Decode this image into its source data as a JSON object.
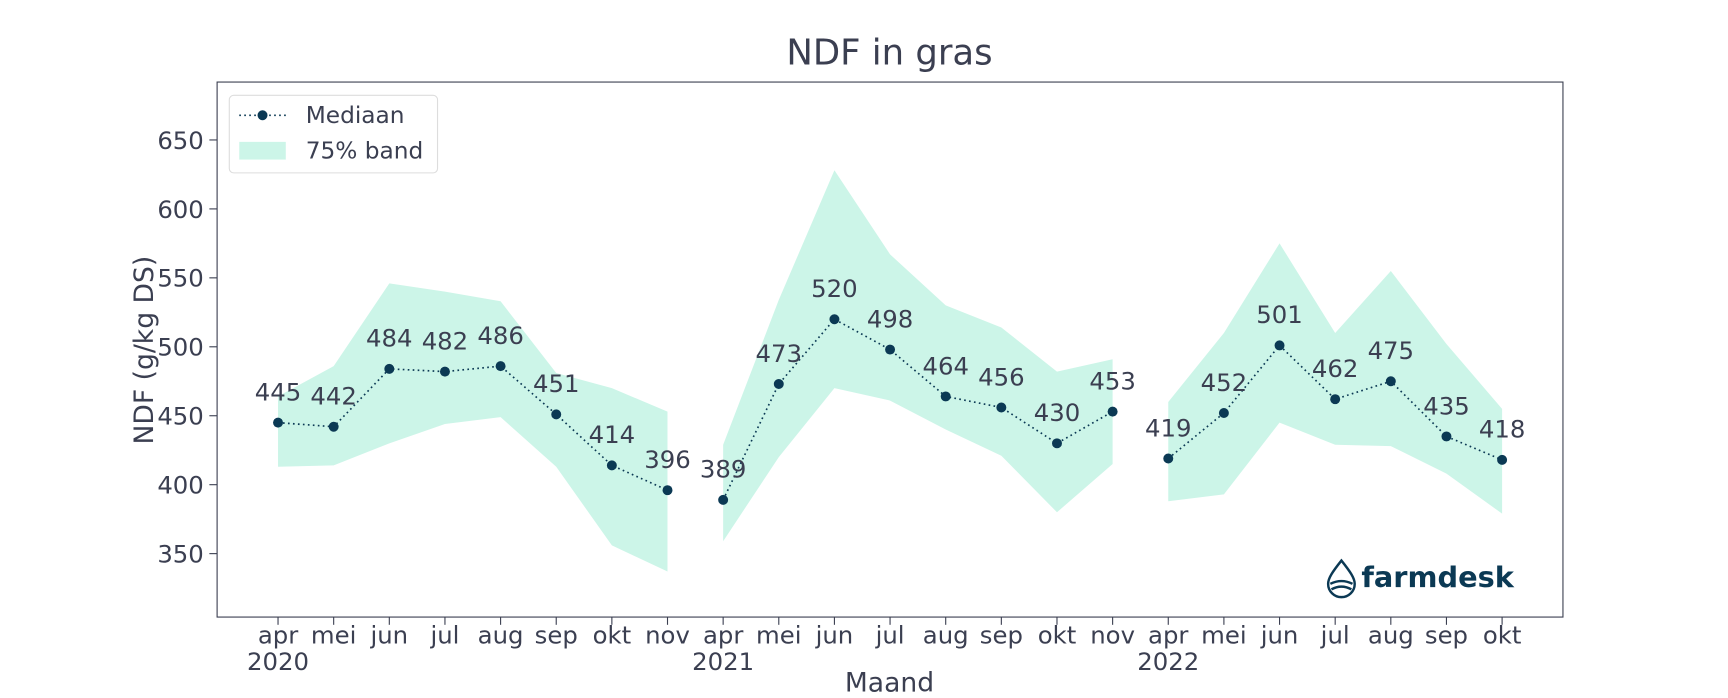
{
  "chart_data": {
    "type": "line_band",
    "title": "NDF in gras",
    "x_label": "Maand",
    "y_label": "NDF (g/kg DS)",
    "ylim": [
      304,
      692
    ],
    "yticks": [
      350,
      400,
      450,
      500,
      550,
      600,
      650
    ],
    "legend_loc": "upper left",
    "logo": "farmdesk",
    "series": [
      {
        "name": "Mediaan",
        "color": "#0b3954"
      },
      {
        "name": "75% band",
        "color": "#ccf5e8"
      }
    ],
    "segments": [
      {
        "year": "2020",
        "months": [
          "apr",
          "mei",
          "jun",
          "jul",
          "aug",
          "sep",
          "okt",
          "nov"
        ],
        "median": [
          445,
          442,
          484,
          482,
          486,
          451,
          414,
          396
        ],
        "band_low": [
          413,
          414,
          430,
          444,
          449,
          413,
          356,
          337
        ],
        "band_high": [
          464,
          486,
          546,
          540,
          533,
          481,
          470,
          453
        ]
      },
      {
        "year": "2021",
        "months": [
          "apr",
          "mei",
          "jun",
          "jul",
          "aug",
          "sep",
          "okt",
          "nov"
        ],
        "median": [
          389,
          473,
          520,
          498,
          464,
          456,
          430,
          453
        ],
        "band_low": [
          359,
          420,
          470,
          461,
          440,
          421,
          380,
          415
        ],
        "band_high": [
          429,
          534,
          628,
          567,
          530,
          514,
          482,
          491
        ]
      },
      {
        "year": "2022",
        "months": [
          "apr",
          "mei",
          "jun",
          "jul",
          "aug",
          "sep",
          "okt"
        ],
        "median": [
          419,
          452,
          501,
          462,
          475,
          435,
          418
        ],
        "band_low": [
          388,
          393,
          445,
          429,
          428,
          408,
          379
        ],
        "band_high": [
          460,
          510,
          575,
          510,
          555,
          502,
          455
        ]
      }
    ]
  }
}
